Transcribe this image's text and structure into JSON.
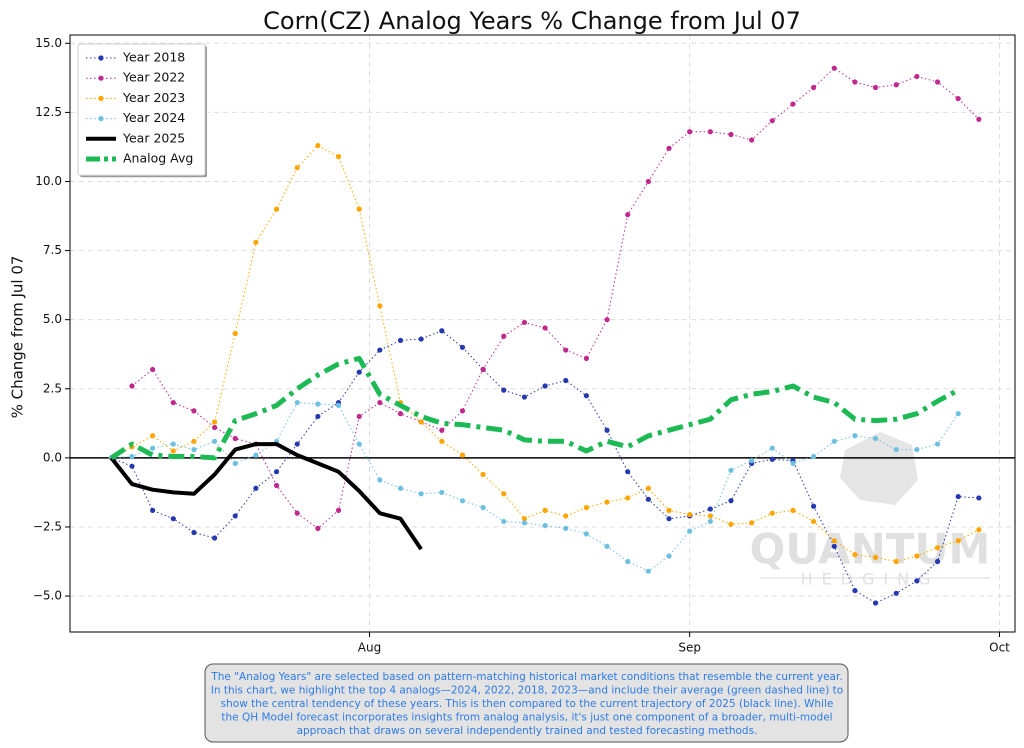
{
  "chart_data": {
    "type": "line",
    "title": "Corn(CZ) Analog Years % Change from Jul 07",
    "y_label": "% Change from Jul 07",
    "x": [
      0,
      2,
      4,
      6,
      8,
      10,
      12,
      14,
      16,
      18,
      20,
      22,
      24,
      26,
      28,
      30,
      32,
      34,
      36,
      38,
      40,
      42,
      44,
      46,
      48,
      50,
      52,
      54,
      56,
      58,
      60,
      62,
      64,
      66,
      68,
      70,
      72,
      74,
      76,
      78,
      80,
      82,
      84
    ],
    "xlim": [
      -4,
      87.5
    ],
    "xticks": [
      {
        "value": 25,
        "label": "Aug"
      },
      {
        "value": 56,
        "label": "Sep"
      },
      {
        "value": 86,
        "label": "Oct"
      }
    ],
    "ylim": [
      -6.3,
      15.3
    ],
    "yticks": [
      {
        "value": -5,
        "label": "−5.0"
      },
      {
        "value": -2.5,
        "label": "−2.5"
      },
      {
        "value": 0,
        "label": "0.0"
      },
      {
        "value": 2.5,
        "label": "2.5"
      },
      {
        "value": 5,
        "label": "5.0"
      },
      {
        "value": 7.5,
        "label": "7.5"
      },
      {
        "value": 10,
        "label": "10.0"
      },
      {
        "value": 12.5,
        "label": "12.5"
      },
      {
        "value": 15,
        "label": "15.0"
      }
    ],
    "grid": true,
    "zero_line": 0,
    "legend": "upper left",
    "series": [
      {
        "name": "Year 2018",
        "color": "#2638b0",
        "linestyle": "dotted",
        "marker": true,
        "linewidth": 1,
        "values": [
          0,
          -0.3,
          -1.9,
          -2.2,
          -2.7,
          -2.9,
          -2.1,
          -1.1,
          -0.5,
          0.5,
          1.5,
          2.0,
          3.1,
          3.9,
          4.25,
          4.3,
          4.6,
          4.0,
          3.2,
          2.45,
          2.2,
          2.6,
          2.8,
          2.25,
          1.0,
          -0.5,
          -1.5,
          -2.2,
          -2.1,
          -1.85,
          -1.55,
          -0.2,
          -0.05,
          -0.1,
          -1.75,
          -3.2,
          -4.8,
          -5.25,
          -4.9,
          -4.45,
          -3.75,
          -1.4,
          -1.45
        ]
      },
      {
        "name": "Year 2022",
        "color": "#c0288c",
        "linestyle": "dotted",
        "marker": true,
        "linewidth": 1,
        "values": [
          null,
          2.6,
          3.2,
          2.0,
          1.7,
          1.1,
          0.7,
          0.5,
          -1.0,
          -2.0,
          -2.55,
          -1.9,
          1.5,
          2.0,
          1.6,
          1.3,
          1.0,
          1.7,
          3.2,
          4.4,
          4.9,
          4.7,
          3.9,
          3.6,
          5.0,
          8.8,
          10.0,
          11.2,
          11.8,
          11.8,
          11.7,
          11.5,
          12.2,
          12.8,
          13.4,
          14.1,
          13.6,
          13.4,
          13.5,
          13.8,
          13.6,
          13.0,
          12.25
        ]
      },
      {
        "name": "Year 2023",
        "color": "#ffa500",
        "linestyle": "dotted",
        "marker": true,
        "linewidth": 1,
        "values": [
          0,
          0.4,
          0.8,
          0.25,
          0.6,
          1.3,
          4.5,
          7.8,
          9.0,
          10.5,
          11.3,
          10.9,
          9.0,
          5.5,
          2.0,
          1.3,
          0.6,
          0.1,
          -0.6,
          -1.3,
          -2.2,
          -1.9,
          -2.1,
          -1.8,
          -1.6,
          -1.45,
          -1.1,
          -1.9,
          -2.05,
          -2.1,
          -2.4,
          -2.35,
          -2.0,
          -1.9,
          -2.3,
          -3.0,
          -3.5,
          -3.6,
          -3.75,
          -3.55,
          -3.25,
          -3.0,
          -2.6
        ]
      },
      {
        "name": "Year 2024",
        "color": "#6ec0e0",
        "linestyle": "dotted",
        "marker": true,
        "linewidth": 1,
        "values": [
          0,
          0.05,
          0.35,
          0.5,
          0.3,
          0.6,
          -0.2,
          0.1,
          0.6,
          2.0,
          1.95,
          1.9,
          0.5,
          -0.8,
          -1.1,
          -1.3,
          -1.25,
          -1.55,
          -1.8,
          -2.3,
          -2.35,
          -2.45,
          -2.55,
          -2.75,
          -3.2,
          -3.75,
          -4.1,
          -3.55,
          -2.65,
          -2.3,
          -0.45,
          -0.1,
          0.35,
          -0.2,
          0.05,
          0.6,
          0.8,
          0.7,
          0.3,
          0.3,
          0.5,
          1.6,
          null
        ]
      },
      {
        "name": "Year 2025",
        "color": "#000000",
        "linestyle": "solid",
        "marker": false,
        "linewidth": 4,
        "values": [
          0,
          -0.95,
          -1.15,
          -1.25,
          -1.3,
          -0.6,
          0.3,
          0.5,
          0.5,
          0.1,
          -0.2,
          -0.5,
          -1.2,
          -2.0,
          -2.2,
          -3.3,
          null,
          null,
          null,
          null,
          null,
          null,
          null,
          null,
          null,
          null,
          null,
          null,
          null,
          null,
          null,
          null,
          null,
          null,
          null,
          null,
          null,
          null,
          null,
          null,
          null,
          null,
          null
        ]
      },
      {
        "name": "Analog Avg",
        "color": "#1db954",
        "linestyle": "dashdot",
        "marker": false,
        "linewidth": 5,
        "values": [
          0,
          0.5,
          0.1,
          0.05,
          0.05,
          0.0,
          1.35,
          1.6,
          1.9,
          2.5,
          3.0,
          3.4,
          3.6,
          2.3,
          1.9,
          1.5,
          1.25,
          1.2,
          1.1,
          1.0,
          0.65,
          0.6,
          0.6,
          0.25,
          0.6,
          0.4,
          0.8,
          1.0,
          1.2,
          1.4,
          2.1,
          2.3,
          2.4,
          2.6,
          2.2,
          2.0,
          1.4,
          1.35,
          1.4,
          1.6,
          2.05,
          2.45,
          null
        ]
      }
    ],
    "watermark": [
      "QUANTUM",
      "HEDGING"
    ],
    "annotation": [
      "The \"Analog Years\" are selected based on pattern-matching historical market conditions that resemble the current year.",
      "In this chart, we highlight the top 4 analogs—2024, 2022, 2018, 2023—and include their average (green dashed line) to",
      "show the central tendency of these years. This is then compared to the current trajectory of 2025 (black line). While",
      "the QH Model forecast incorporates insights from analog analysis, it's just one component of a broader, multi-model",
      "approach that draws on several independently trained and tested forecasting methods."
    ]
  }
}
